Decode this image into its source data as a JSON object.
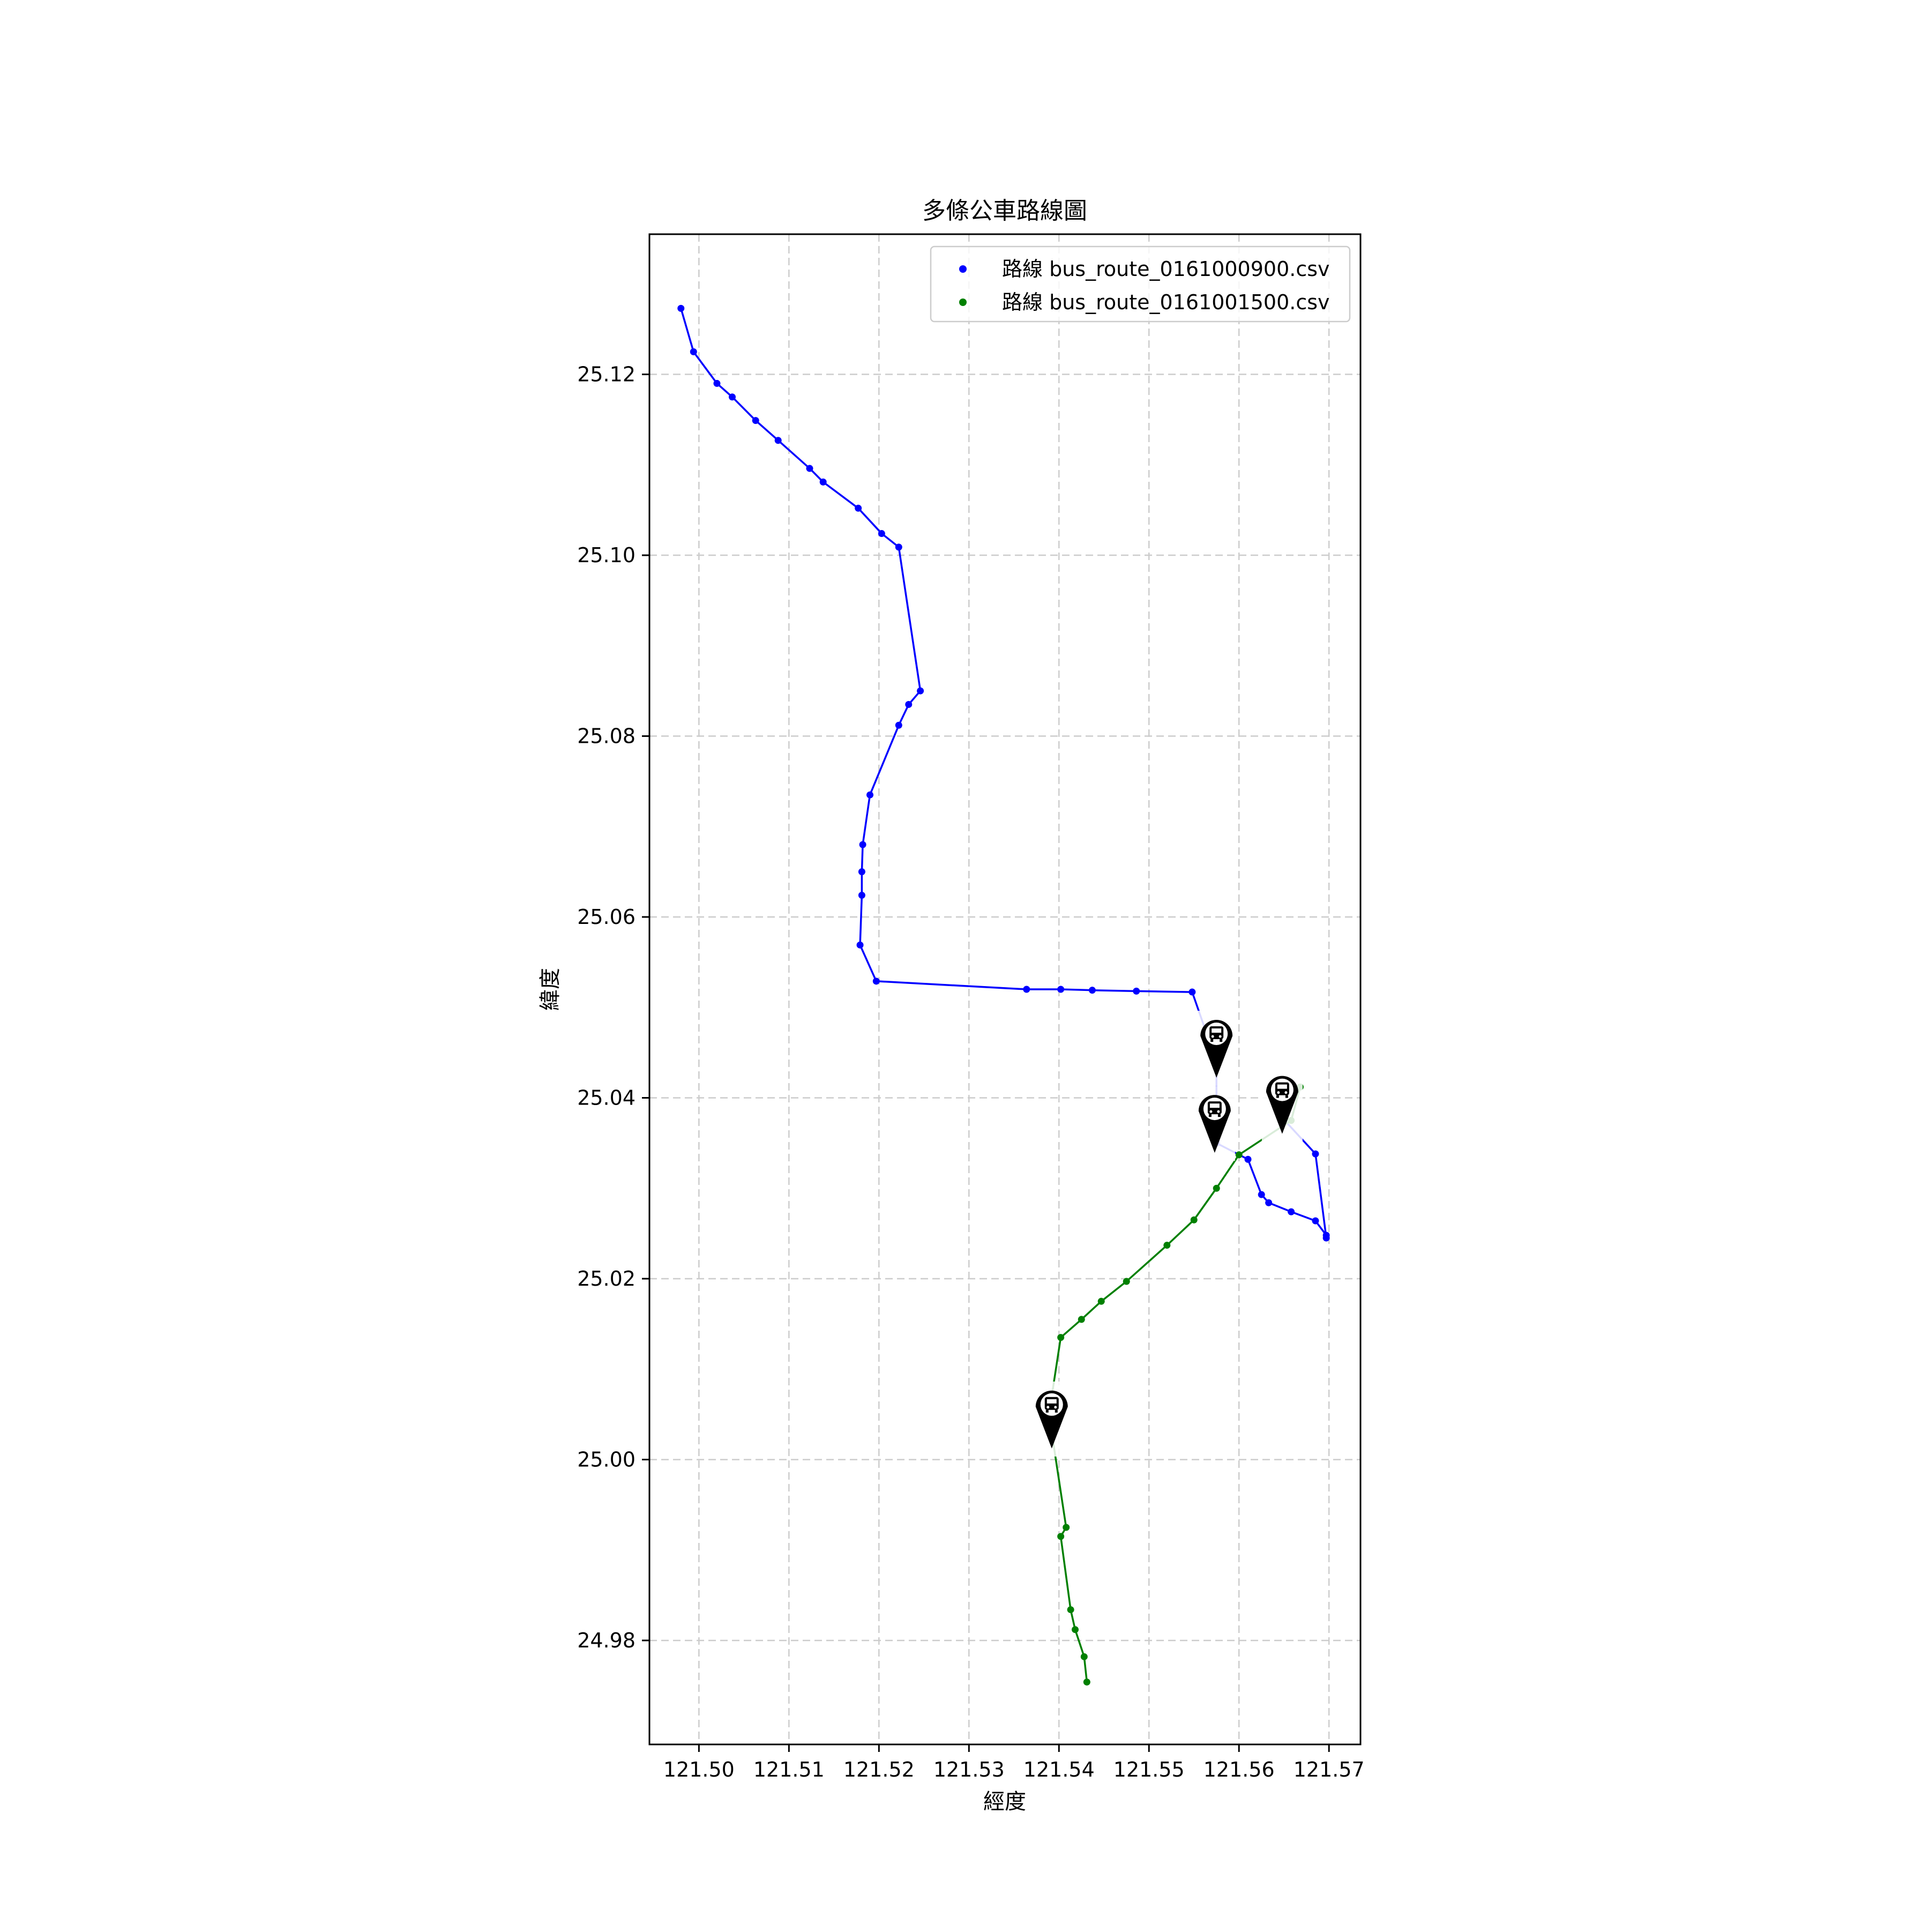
{
  "chart_data": {
    "type": "line",
    "title": "多條公車路線圖",
    "xlabel": "經度",
    "ylabel": "緯度",
    "xlim": [
      121.4945,
      121.5735
    ],
    "ylim": [
      24.9685,
      25.1355
    ],
    "xticks": [
      "121.50",
      "121.51",
      "121.52",
      "121.53",
      "121.54",
      "121.55",
      "121.56",
      "121.57"
    ],
    "yticks": [
      "24.98",
      "25.00",
      "25.02",
      "25.04",
      "25.06",
      "25.08",
      "25.10",
      "25.12"
    ],
    "grid": true,
    "legend_position": "top-right",
    "series": [
      {
        "name": "路線 bus_route_0161000900.csv",
        "color": "#0000ff",
        "points": [
          [
            121.498,
            25.1273
          ],
          [
            121.4994,
            25.1225
          ],
          [
            121.502,
            25.119
          ],
          [
            121.5037,
            25.1175
          ],
          [
            121.5063,
            25.1149
          ],
          [
            121.5088,
            25.1127
          ],
          [
            121.5123,
            25.1096
          ],
          [
            121.5138,
            25.1081
          ],
          [
            121.5177,
            25.1052
          ],
          [
            121.5203,
            25.1024
          ],
          [
            121.5222,
            25.1009
          ],
          [
            121.5246,
            25.085
          ],
          [
            121.5233,
            25.0835
          ],
          [
            121.5222,
            25.0812
          ],
          [
            121.519,
            25.0735
          ],
          [
            121.5182,
            25.068
          ],
          [
            121.5181,
            25.065
          ],
          [
            121.5181,
            25.0624
          ],
          [
            121.5179,
            25.0569
          ],
          [
            121.5197,
            25.0529
          ],
          [
            121.5364,
            25.052
          ],
          [
            121.5402,
            25.052
          ],
          [
            121.5437,
            25.0519
          ],
          [
            121.5486,
            25.0518
          ],
          [
            121.5548,
            25.0517
          ],
          [
            121.5575,
            25.044
          ],
          [
            121.5575,
            25.035
          ],
          [
            121.561,
            25.0332
          ],
          [
            121.5625,
            25.0293
          ],
          [
            121.5633,
            25.0284
          ],
          [
            121.5658,
            25.0274
          ],
          [
            121.5685,
            25.0264
          ],
          [
            121.5697,
            25.0248
          ],
          [
            121.5697,
            25.0245
          ],
          [
            121.5685,
            25.0338
          ],
          [
            121.5648,
            25.0378
          ],
          [
            121.5653,
            25.0413
          ]
        ]
      },
      {
        "name": "路線 bus_route_0161001500.csv",
        "color": "#008000",
        "points": [
          [
            121.5668,
            25.0412
          ],
          [
            121.5658,
            25.0375
          ],
          [
            121.56,
            25.0337
          ],
          [
            121.5575,
            25.03
          ],
          [
            121.555,
            25.0265
          ],
          [
            121.552,
            25.0237
          ],
          [
            121.5475,
            25.0197
          ],
          [
            121.5447,
            25.0175
          ],
          [
            121.5425,
            25.0155
          ],
          [
            121.5402,
            25.0135
          ],
          [
            121.5392,
            25.007
          ],
          [
            121.5392,
            25.003
          ],
          [
            121.5408,
            24.9925
          ],
          [
            121.5402,
            24.9915
          ],
          [
            121.5413,
            24.9834
          ],
          [
            121.5418,
            24.9812
          ],
          [
            121.5428,
            24.9782
          ],
          [
            121.5431,
            24.9754
          ]
        ]
      }
    ],
    "markers": [
      {
        "icon": "bus-stop-pin-icon",
        "lon": 121.5575,
        "lat": 25.044
      },
      {
        "icon": "bus-stop-pin-icon",
        "lon": 121.5573,
        "lat": 25.0357
      },
      {
        "icon": "bus-stop-pin-icon",
        "lon": 121.5648,
        "lat": 25.0378
      },
      {
        "icon": "bus-stop-pin-icon",
        "lon": 121.5392,
        "lat": 25.003
      }
    ]
  }
}
